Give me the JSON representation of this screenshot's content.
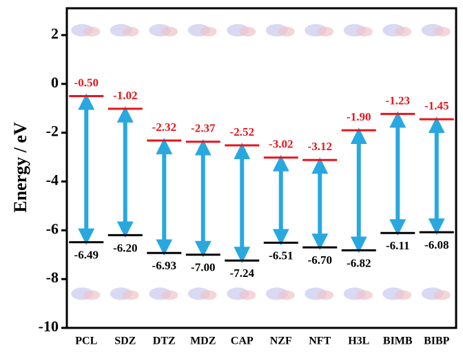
{
  "chart_data": {
    "type": "energy-level",
    "ylabel": "Energy / eV",
    "categories": [
      "PCL",
      "SDZ",
      "DTZ",
      "MDZ",
      "CAP",
      "NZF",
      "NFT",
      "H3L",
      "BIMB",
      "BIBP"
    ],
    "series": [
      {
        "color": "#e8141a",
        "values": [
          -0.5,
          -1.02,
          -2.32,
          -2.37,
          -2.52,
          -3.02,
          -3.12,
          -1.9,
          -1.23,
          -1.45
        ],
        "value_labels": [
          "-0.50",
          "-1.02",
          "-2.32",
          "-2.37",
          "-2.52",
          "-3.02",
          "-3.12",
          "-1.90",
          "-1.23",
          "-1.45"
        ]
      },
      {
        "color": "#000000",
        "values": [
          -6.49,
          -6.2,
          -6.93,
          -7.0,
          -7.24,
          -6.51,
          -6.7,
          -6.82,
          -6.11,
          -6.08
        ],
        "value_labels": [
          "-6.49",
          "-6.20",
          "-6.93",
          "-7.00",
          "-7.24",
          "-6.51",
          "-6.70",
          "-6.82",
          "-6.11",
          "-6.08"
        ]
      }
    ],
    "arrow_color": "#29a8e0",
    "ylim": [
      -10,
      3.1
    ],
    "yticks": [
      -10,
      -8,
      -6,
      -4,
      -2,
      0,
      2
    ]
  }
}
